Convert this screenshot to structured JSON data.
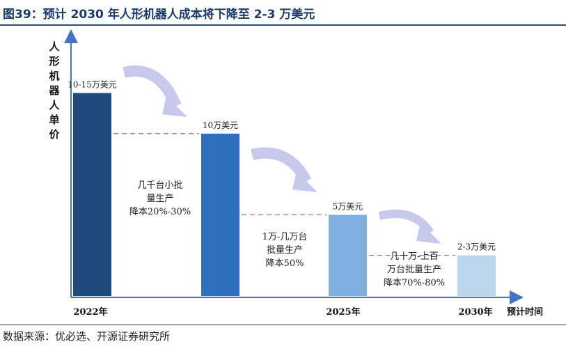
{
  "header": {
    "title": "图39：预计 2030 年人形机器人成本将下降至 2-3 万美元"
  },
  "footer": {
    "source": "数据来源：优必选、开源证券研究所"
  },
  "colors": {
    "title": "#1b3a6b",
    "bar_2022": "#1f4a7e",
    "bar_10k": "#2e6fc0",
    "bar_5k": "#7fb0e0",
    "bar_2_3k": "#bcd6ee",
    "arrow": "#c7c9ec",
    "axis": "#4472c4"
  },
  "chart_data": {
    "type": "bar",
    "title": "",
    "ylabel": "人形机器人单价",
    "xlabel": "预计时间",
    "bars": [
      {
        "id": "b1",
        "label": "10-15万美元",
        "value": 12.5,
        "color": "#1f4a7e"
      },
      {
        "id": "b2",
        "label": "10万美元",
        "value": 10,
        "color": "#2e6fc0"
      },
      {
        "id": "b3",
        "label": "5万美元",
        "value": 5,
        "color": "#7fb0e0"
      },
      {
        "id": "b4",
        "label": "2-3万美元",
        "value": 2.5,
        "color": "#bcd6ee"
      }
    ],
    "x_ticks": [
      {
        "label": "2022年",
        "at_bar": 0
      },
      {
        "label": "2025年",
        "at_bar": 2
      },
      {
        "label": "2030年",
        "at_bar": 3
      }
    ],
    "annotations": [
      {
        "lines": [
          "几千台小批",
          "量生产",
          "降本20%-30%"
        ]
      },
      {
        "lines": [
          "1万-几万台",
          "批量生产",
          "降本50%"
        ]
      },
      {
        "lines": [
          "几十万-上百",
          "万台批量生产",
          "降本70%-80%"
        ]
      }
    ],
    "ylim": [
      0,
      16
    ],
    "grid": false
  }
}
